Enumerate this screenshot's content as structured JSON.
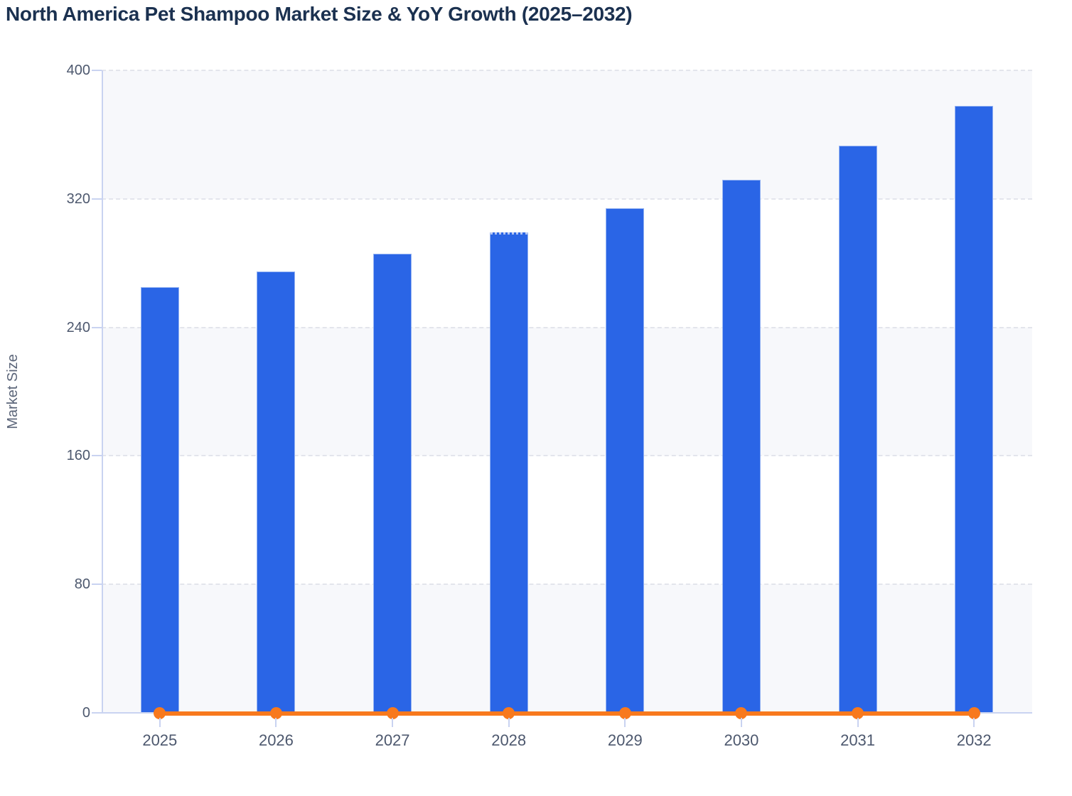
{
  "chart_data": {
    "type": "bar",
    "title": "North America Pet Shampoo Market Size & YoY Growth (2025–2032)",
    "categories": [
      "2025",
      "2026",
      "2027",
      "2028",
      "2029",
      "2030",
      "2031",
      "2032"
    ],
    "series": [
      {
        "name": "Market Size",
        "type": "bar",
        "color": "#2a65e6",
        "values": [
          265,
          275,
          286,
          299,
          314,
          332,
          353,
          378
        ]
      },
      {
        "name": "YoY Growth",
        "type": "line",
        "color": "#f8791d",
        "values": [
          0,
          0,
          0,
          0,
          0,
          0,
          0,
          0
        ],
        "note": "line with circular markers renders flat at the 0 baseline of the Market Size axis"
      }
    ],
    "xlabel": "",
    "ylabel": "Market Size",
    "ylim": [
      0,
      400
    ],
    "yticks": [
      0,
      80,
      160,
      240,
      320,
      400
    ],
    "grid": "horizontal dashed gridlines at each y tick",
    "legend": "none",
    "plot_bands": "alternating shaded/white horizontal bands every 80 units (400-320 shaded, 320-240 white, 240-160 shaded, 160-80 white, 80-0 shaded)",
    "style": {
      "dashed_top_year": "2028"
    }
  },
  "colors": {
    "bar": "#2a65e6",
    "bar_edge": "#a7bdf1",
    "line": "#f8791d",
    "title_text": "#1b3150",
    "axis_text": "#4d586e",
    "axis_line": "#c9d3f1",
    "gridline": "#e3e5ec",
    "band_shade": "#f7f8fb",
    "background": "#ffffff"
  }
}
